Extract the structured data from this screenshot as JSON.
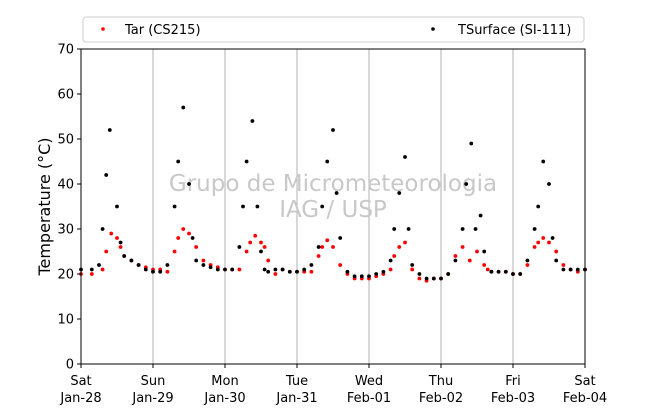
{
  "chart_data": {
    "type": "scatter",
    "ylabel": "Temperature (°C)",
    "ylim": [
      0,
      70
    ],
    "yticks": [
      0,
      10,
      20,
      30,
      40,
      50,
      60,
      70
    ],
    "xlim": [
      0,
      7
    ],
    "xticks": [
      {
        "day": "Sat",
        "date": "Jan-28"
      },
      {
        "day": "Sun",
        "date": "Jan-29"
      },
      {
        "day": "Mon",
        "date": "Jan-30"
      },
      {
        "day": "Tue",
        "date": "Jan-31"
      },
      {
        "day": "Wed",
        "date": "Feb-01"
      },
      {
        "day": "Thu",
        "date": "Feb-02"
      },
      {
        "day": "Fri",
        "date": "Feb-03"
      },
      {
        "day": "Sat",
        "date": "Feb-04"
      }
    ],
    "grid": "vertical",
    "legend_position": "top",
    "watermark": [
      "Grupo de Micrometeorologia",
      "IAG / USP"
    ],
    "series": [
      {
        "name": "Tar (CS215)",
        "color": "#ff0000",
        "x": [
          0.0,
          0.15,
          0.3,
          0.35,
          0.42,
          0.5,
          0.55,
          0.6,
          0.7,
          0.8,
          0.9,
          1.0,
          1.1,
          1.2,
          1.3,
          1.35,
          1.42,
          1.5,
          1.6,
          1.7,
          1.8,
          1.9,
          2.0,
          2.1,
          2.2,
          2.3,
          2.35,
          2.42,
          2.5,
          2.55,
          2.6,
          2.7,
          2.8,
          2.9,
          3.0,
          3.1,
          3.2,
          3.3,
          3.35,
          3.42,
          3.5,
          3.6,
          3.7,
          3.8,
          3.9,
          4.0,
          4.1,
          4.2,
          4.3,
          4.35,
          4.42,
          4.5,
          4.6,
          4.7,
          4.8,
          4.9,
          5.0,
          5.1,
          5.2,
          5.3,
          5.4,
          5.5,
          5.6,
          5.65,
          5.7,
          5.8,
          5.9,
          6.0,
          6.1,
          6.2,
          6.3,
          6.35,
          6.42,
          6.5,
          6.6,
          6.7,
          6.8,
          6.9,
          7.0
        ],
        "y": [
          20,
          20,
          21,
          25,
          29,
          28,
          26,
          24,
          23,
          22,
          21.5,
          21,
          21,
          20.5,
          25,
          28,
          30,
          29,
          26,
          23,
          22,
          21.5,
          21,
          21,
          21,
          25,
          27,
          28.5,
          27,
          26,
          23,
          20,
          21,
          20.5,
          20.5,
          20.5,
          20.5,
          24,
          26,
          27.5,
          26,
          22,
          20,
          19,
          19,
          19,
          19.5,
          20,
          21,
          24,
          26,
          27,
          21,
          19,
          18.5,
          19,
          19,
          20,
          24,
          26,
          23,
          25,
          22,
          21,
          20.5,
          20.5,
          20.5,
          20,
          20,
          22,
          26,
          27,
          28,
          27,
          25,
          22,
          21,
          20.5,
          21
        ]
      },
      {
        "name": "TSurface (SI-111)",
        "color": "#000000",
        "x": [
          0.0,
          0.15,
          0.25,
          0.3,
          0.35,
          0.4,
          0.5,
          0.55,
          0.6,
          0.7,
          0.8,
          0.9,
          1.0,
          1.1,
          1.2,
          1.3,
          1.35,
          1.42,
          1.5,
          1.55,
          1.6,
          1.7,
          1.8,
          1.9,
          2.0,
          2.1,
          2.2,
          2.25,
          2.3,
          2.38,
          2.45,
          2.5,
          2.55,
          2.6,
          2.7,
          2.8,
          2.9,
          3.0,
          3.1,
          3.2,
          3.3,
          3.35,
          3.42,
          3.5,
          3.55,
          3.6,
          3.7,
          3.8,
          3.9,
          4.0,
          4.1,
          4.2,
          4.3,
          4.35,
          4.42,
          4.5,
          4.55,
          4.6,
          4.7,
          4.8,
          4.9,
          5.0,
          5.1,
          5.2,
          5.3,
          5.35,
          5.42,
          5.48,
          5.55,
          5.6,
          5.7,
          5.8,
          5.9,
          6.0,
          6.1,
          6.2,
          6.3,
          6.35,
          6.42,
          6.5,
          6.55,
          6.6,
          6.7,
          6.8,
          6.9,
          7.0
        ],
        "y": [
          21,
          21,
          22,
          30,
          42,
          52,
          35,
          27,
          24,
          23,
          22,
          21,
          20.5,
          20.5,
          22,
          35,
          45,
          57,
          40,
          28,
          23,
          22,
          21.5,
          21,
          21,
          21,
          26,
          35,
          45,
          54,
          35,
          25,
          21,
          20.5,
          21,
          21,
          20.5,
          20.5,
          21,
          22,
          26,
          35,
          45,
          52,
          38,
          28,
          20.5,
          19.5,
          19.5,
          19.5,
          20,
          20.5,
          23,
          30,
          38,
          46,
          30,
          22,
          20,
          19,
          19,
          19,
          20,
          23,
          30,
          40,
          49,
          30,
          33,
          25,
          20.5,
          20.5,
          20.5,
          20,
          20,
          23,
          30,
          35,
          45,
          40,
          28,
          23,
          21,
          21,
          21,
          21
        ]
      }
    ]
  }
}
